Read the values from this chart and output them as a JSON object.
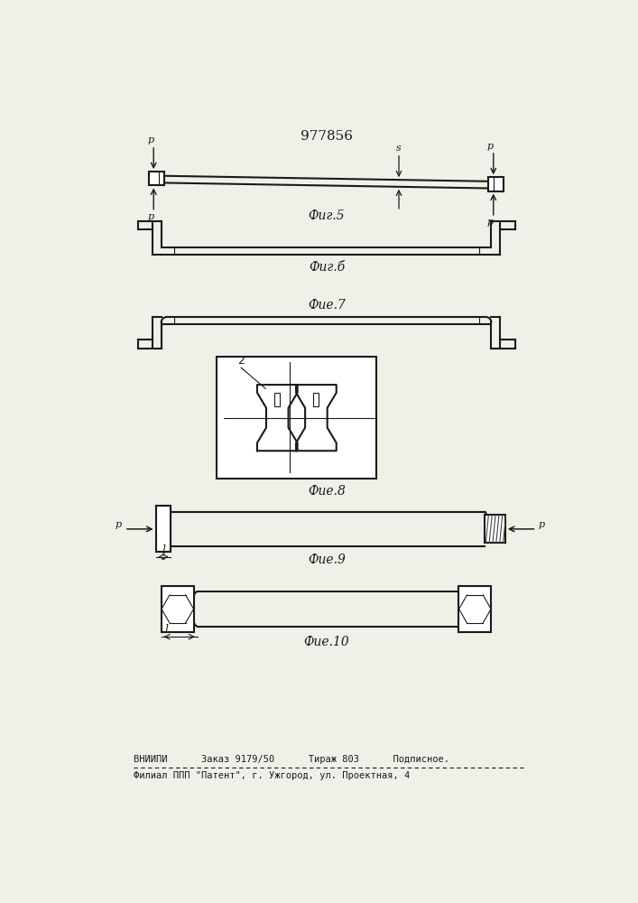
{
  "title": "977856",
  "fig5_label": "Фиг.5",
  "fig6_label": "Фиг.б",
  "fig7_label": "Фие.7",
  "fig8_label": "Фие.8",
  "fig9_label": "Фие.9",
  "fig10_label": "Фие.10",
  "footer_line1": "ВНИИПИ      Заказ 9179/50      Тираж 803      Подписное.",
  "footer_line2": "Филиал ППП \"Патент\", г. Ужгород, ул. Проектная, 4",
  "bg_color": "#f0efe8",
  "line_color": "#1a1a1a",
  "label_2": "2",
  "label_s": "s",
  "label_p": "р",
  "label_l": "l"
}
